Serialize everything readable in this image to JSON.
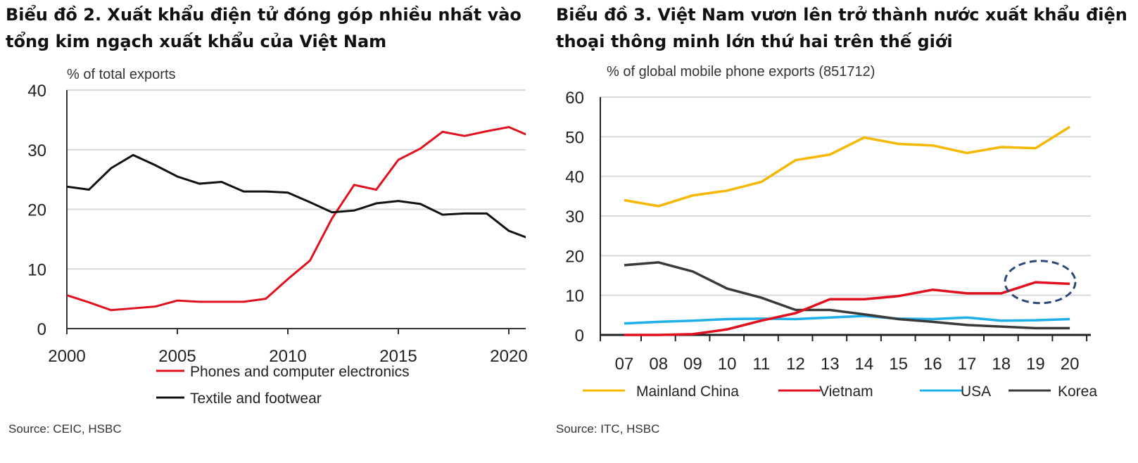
{
  "chart_data": [
    {
      "type": "line",
      "title": "Biểu đồ 2. Xuất khẩu điện tử đóng góp nhiều nhất vào tổng kim ngạch xuất khẩu của Việt Nam",
      "ylabel": "% of total exports",
      "xlabel": "",
      "ylim": [
        0,
        40
      ],
      "yticks": [
        "0",
        "10",
        "20",
        "30",
        "40"
      ],
      "xticks": [
        "2000",
        "2005",
        "2010",
        "2015",
        "2020"
      ],
      "x": [
        2000,
        2001,
        2002,
        2003,
        2004,
        2005,
        2006,
        2007,
        2008,
        2009,
        2010,
        2011,
        2012,
        2013,
        2014,
        2015,
        2016,
        2017,
        2018,
        2019,
        2020,
        2021
      ],
      "series": [
        {
          "name": "Phones and computer electronics",
          "color": "#e0101e",
          "values": [
            5.6,
            4.4,
            3.1,
            3.4,
            3.7,
            4.7,
            4.5,
            4.5,
            4.5,
            5.0,
            8.3,
            11.4,
            18.5,
            24.1,
            23.3,
            28.3,
            30.2,
            33.0,
            32.3,
            33.1,
            33.8,
            32.2
          ]
        },
        {
          "name": "Textile and footwear",
          "color": "#111111",
          "values": [
            23.8,
            23.3,
            26.9,
            29.1,
            27.4,
            25.5,
            24.3,
            24.6,
            23.0,
            23.0,
            22.8,
            21.2,
            19.5,
            19.8,
            21.0,
            21.4,
            20.9,
            19.1,
            19.3,
            19.3,
            16.4,
            15.0
          ]
        }
      ],
      "grid": true,
      "legend": "bottom",
      "source": "Source: CEIC, HSBC"
    },
    {
      "type": "line",
      "title": "Biểu đồ 3. Việt Nam vươn lên trở thành nước xuất khẩu điện thoại thông minh lớn thứ hai trên thế giới",
      "ylabel": "% of global mobile phone exports (851712)",
      "xlabel": "",
      "ylim": [
        0,
        60
      ],
      "yticks": [
        "0",
        "10",
        "20",
        "30",
        "40",
        "50",
        "60"
      ],
      "x": [
        "07",
        "08",
        "09",
        "10",
        "11",
        "12",
        "13",
        "14",
        "15",
        "16",
        "17",
        "18",
        "19",
        "20"
      ],
      "series": [
        {
          "name": "Mainland China",
          "color": "#f5b800",
          "values": [
            34.0,
            32.5,
            35.2,
            36.4,
            38.6,
            44.1,
            45.5,
            49.8,
            48.2,
            47.8,
            45.9,
            47.4,
            47.1,
            52.5
          ]
        },
        {
          "name": "Vietnam",
          "color": "#e0101e",
          "values": [
            0,
            0,
            0.2,
            1.4,
            3.6,
            5.5,
            9.0,
            9.0,
            9.8,
            11.4,
            10.5,
            10.5,
            13.3,
            12.9
          ]
        },
        {
          "name": "USA",
          "color": "#1fb0ea",
          "values": [
            2.9,
            3.3,
            3.6,
            4.0,
            4.1,
            4.0,
            4.4,
            4.8,
            4.1,
            4.0,
            4.4,
            3.6,
            3.7,
            4.0
          ]
        },
        {
          "name": "Korea",
          "color": "#3a3a3a",
          "values": [
            17.6,
            18.3,
            16.0,
            11.7,
            9.4,
            6.3,
            6.3,
            5.2,
            4.0,
            3.3,
            2.5,
            2.1,
            1.7,
            1.7
          ]
        }
      ],
      "annotation": {
        "type": "dashed-ellipse",
        "around": "Vietnam 2019-2020",
        "color": "#2b4a7a"
      },
      "grid": true,
      "legend": "bottom",
      "source": "Source: ITC, HSBC"
    }
  ]
}
